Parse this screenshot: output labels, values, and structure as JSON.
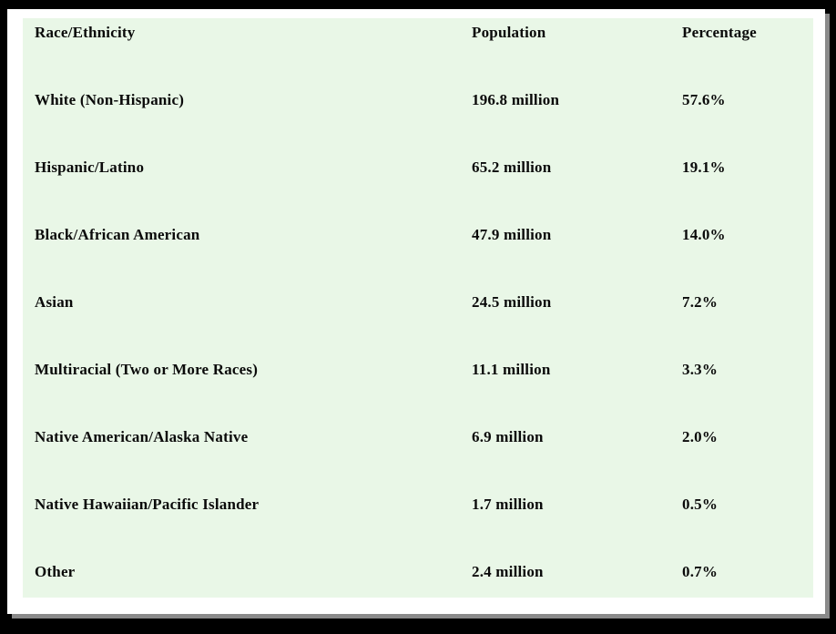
{
  "chart_data": {
    "type": "table",
    "title": "",
    "columns": {
      "race": "Race/Ethnicity",
      "population": "Population",
      "percentage": "Percentage"
    },
    "rows": [
      {
        "race": "White (Non-Hispanic)",
        "population": "196.8 million",
        "percentage": "57.6%"
      },
      {
        "race": "Hispanic/Latino",
        "population": "65.2 million",
        "percentage": "19.1%"
      },
      {
        "race": "Black/African American",
        "population": "47.9 million",
        "percentage": "14.0%"
      },
      {
        "race": "Asian",
        "population": "24.5 million",
        "percentage": "7.2%"
      },
      {
        "race": "Multiracial (Two or More Races)",
        "population": "11.1 million",
        "percentage": "3.3%"
      },
      {
        "race": "Native American/Alaska Native",
        "population": "6.9 million",
        "percentage": "2.0%"
      },
      {
        "race": "Native Hawaiian/Pacific Islander",
        "population": "1.7 million",
        "percentage": "0.5%"
      },
      {
        "race": "Other",
        "population": "2.4 million",
        "percentage": "0.7%"
      }
    ],
    "layout": {
      "grid": false,
      "header_row": true,
      "columns_order": [
        "race",
        "population",
        "percentage"
      ]
    }
  },
  "colors": {
    "frame": "#000000",
    "card_background": "#ffffff",
    "table_background": "#e9f7e7",
    "text": "#0a0a0a",
    "shadow": "#8a8a8a"
  }
}
